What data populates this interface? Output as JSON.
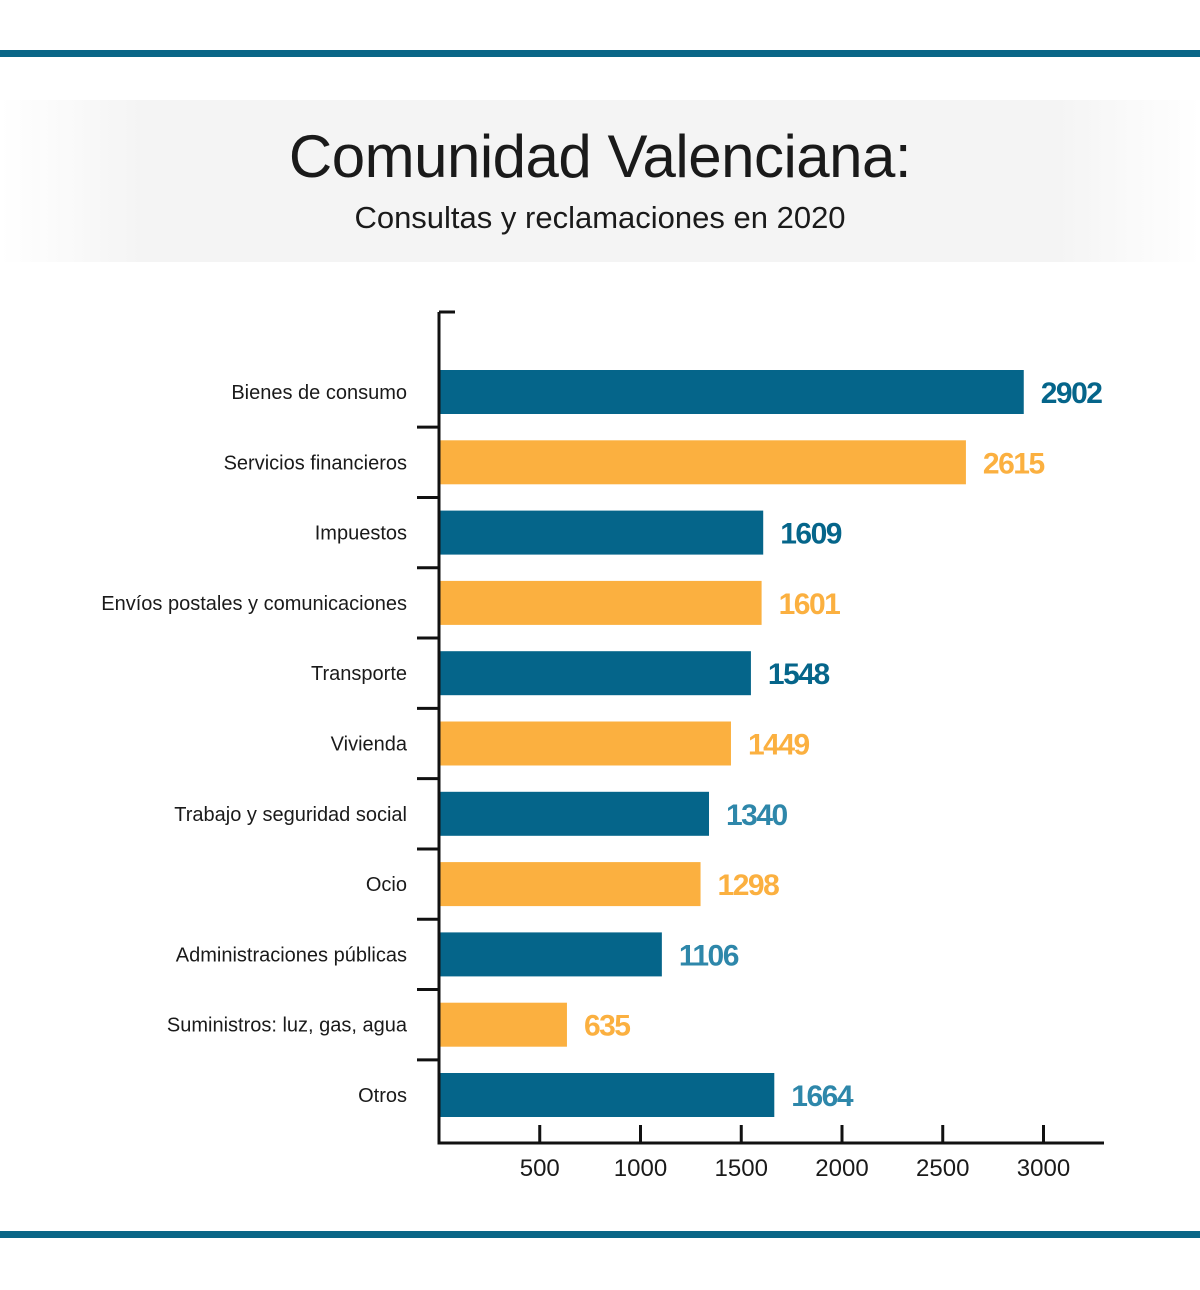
{
  "header": {
    "title": "Comunidad Valenciana:",
    "subtitle": "Consultas y reclamaciones en 2020"
  },
  "colors": {
    "rule": "#0a6687",
    "teal": "#05658a",
    "orange": "#fbb040",
    "teal_light_label": "#2e87aa",
    "axis": "#111111"
  },
  "chart_data": {
    "type": "bar",
    "orientation": "horizontal",
    "title": "Comunidad Valenciana:",
    "subtitle": "Consultas y reclamaciones en 2020",
    "categories": [
      "Bienes de consumo",
      "Servicios financieros",
      "Impuestos",
      "Envíos postales y comunicaciones",
      "Transporte",
      "Vivienda",
      "Trabajo y seguridad social",
      "Ocio",
      "Administraciones públicas",
      "Suministros: luz, gas, agua",
      "Otros"
    ],
    "values": [
      2902,
      2615,
      1609,
      1601,
      1548,
      1449,
      1340,
      1298,
      1106,
      635,
      1664
    ],
    "bar_colors": [
      "#05658a",
      "#fbb040",
      "#05658a",
      "#fbb040",
      "#05658a",
      "#fbb040",
      "#05658a",
      "#fbb040",
      "#05658a",
      "#fbb040",
      "#05658a"
    ],
    "label_colors": [
      "#05658a",
      "#fbb040",
      "#05658a",
      "#fbb040",
      "#05658a",
      "#fbb040",
      "#2e87aa",
      "#fbb040",
      "#2e87aa",
      "#fbb040",
      "#2e87aa"
    ],
    "x_ticks": [
      500,
      1000,
      1500,
      2000,
      2500,
      3000
    ],
    "xlim": [
      0,
      3300
    ],
    "xlabel": "",
    "ylabel": "",
    "grid": false,
    "legend": "none"
  }
}
